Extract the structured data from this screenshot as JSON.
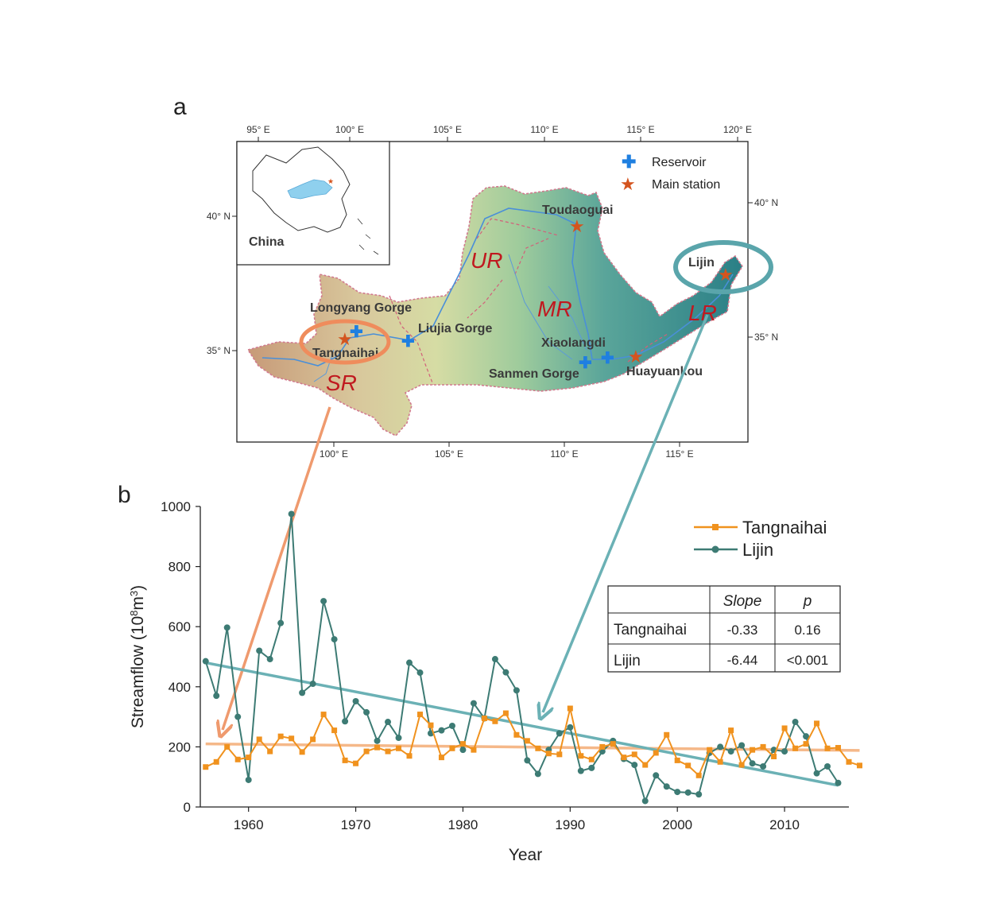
{
  "panel_a": {
    "label": "a",
    "top_ticks": [
      "95° E",
      "100° E",
      "105° E",
      "110° E",
      "115° E",
      "120° E"
    ],
    "bottom_ticks": [
      "100° E",
      "105° E",
      "110° E",
      "115° E"
    ],
    "left_ticks": [
      "40° N",
      "35° N"
    ],
    "right_ticks": [
      "40° N",
      "35° N"
    ],
    "inset_label": "China",
    "legend": {
      "reservoir": "Reservoir",
      "main_station": "Main station"
    },
    "stations": {
      "toudaoguai": "Toudaoguai",
      "lijin": "Lijin",
      "longyang": "Longyang Gorge",
      "liujia": "Liujia Gorge",
      "tangnaihai": "Tangnaihai",
      "xiaolangdi": "Xiaolangdi",
      "sanmen": "Sanmen Gorge",
      "huayuankou": "Huayuankou"
    },
    "regions": {
      "ur": "UR",
      "mr": "MR",
      "lr": "LR",
      "sr": "SR"
    },
    "colors": {
      "reservoir": "#1f7fe0",
      "station": "#d4541e",
      "highlight_sr": "#ef8c5c",
      "highlight_lr": "#5aa5ab"
    }
  },
  "panel_b": {
    "label": "b",
    "legend": {
      "series1": "Tangnaihai",
      "series2": "Lijin"
    },
    "table": {
      "h_slope": "Slope",
      "h_p": "p",
      "r1_name": "Tangnaihai",
      "r1_slope": "-0.33",
      "r1_p": "0.16",
      "r2_name": "Lijin",
      "r2_slope": "-6.44",
      "r2_p": "<0.001"
    }
  },
  "chart_data": {
    "type": "line",
    "xlabel": "Year",
    "ylabel_prefix": "Streamflow (10",
    "ylabel_exp1": "8",
    "ylabel_mid": "m",
    "ylabel_exp2": "3",
    "ylabel_suffix": ")",
    "xlim": [
      1955.5,
      2016
    ],
    "ylim": [
      0,
      1000
    ],
    "xticks": [
      1960,
      1970,
      1980,
      1990,
      2000,
      2010
    ],
    "yticks": [
      0,
      200,
      400,
      600,
      800,
      1000
    ],
    "x_start": 1956,
    "series": [
      {
        "name": "Tangnaihai",
        "color": "#f0921e",
        "marker": "square",
        "values": [
          133,
          150,
          200,
          158,
          165,
          225,
          185,
          235,
          228,
          183,
          225,
          308,
          255,
          155,
          145,
          185,
          198,
          185,
          195,
          170,
          308,
          272,
          165,
          195,
          210,
          190,
          295,
          285,
          312,
          240,
          220,
          195,
          178,
          175,
          328,
          170,
          158,
          200,
          210,
          165,
          175,
          140,
          180,
          240,
          155,
          138,
          105,
          190,
          150,
          255,
          140,
          190,
          200,
          168,
          262,
          195,
          210,
          278,
          195,
          197,
          150,
          138
        ],
        "trend": [
          210,
          188
        ]
      },
      {
        "name": "Lijin",
        "color": "#3d7b74",
        "marker": "circle",
        "values": [
          485,
          370,
          597,
          300,
          90,
          520,
          492,
          612,
          975,
          380,
          410,
          685,
          558,
          285,
          352,
          315,
          220,
          283,
          230,
          480,
          447,
          245,
          255,
          270,
          190,
          345,
          295,
          492,
          448,
          388,
          155,
          110,
          190,
          245,
          265,
          120,
          130,
          185,
          220,
          160,
          140,
          20,
          105,
          68,
          50,
          48,
          42,
          180,
          200,
          185,
          205,
          145,
          135,
          190,
          185,
          283,
          235,
          112,
          135,
          80
        ],
        "trend": [
          480,
          72
        ]
      }
    ]
  }
}
